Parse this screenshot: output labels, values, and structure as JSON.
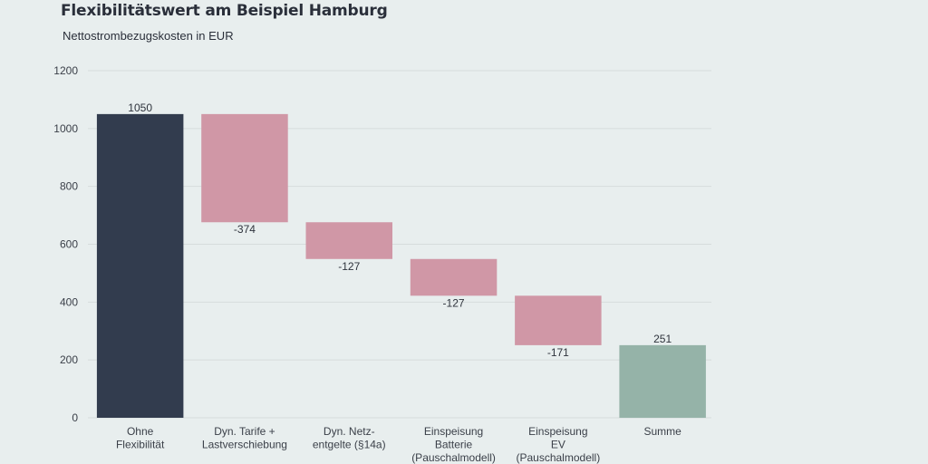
{
  "chart_data": {
    "type": "waterfall",
    "title": "Flexibilitätswert am Beispiel Hamburg",
    "subtitle": "Nettostrombezugskosten in EUR",
    "xlabel": "",
    "ylabel": "",
    "ylim": [
      0,
      1200
    ],
    "yticks": [
      0,
      200,
      400,
      600,
      800,
      1000,
      1200
    ],
    "grid": true,
    "categories": [
      [
        "Ohne",
        "Flexibilität"
      ],
      [
        "Dyn. Tarife +",
        "Lastverschiebung"
      ],
      [
        "Dyn. Netz-",
        "entgelte (§14a)"
      ],
      [
        "Einspeisung",
        "Batterie",
        "(Pauschalmodell)"
      ],
      [
        "Einspeisung",
        "EV",
        "(Pauschalmodell)"
      ],
      [
        "Summe"
      ]
    ],
    "values": [
      1050,
      -374,
      -127,
      -127,
      -171,
      251
    ],
    "bar_kinds": [
      "total",
      "delta",
      "delta",
      "delta",
      "delta",
      "total"
    ],
    "data_labels": [
      "1050",
      "-374",
      "-127",
      "-127",
      "-171",
      "251"
    ],
    "colors": {
      "start_total": "#323c4e",
      "delta": "#d097a6",
      "end_total": "#95b3a8",
      "grid": "#d6dcdc",
      "axis_text": "#3a3f48"
    }
  }
}
